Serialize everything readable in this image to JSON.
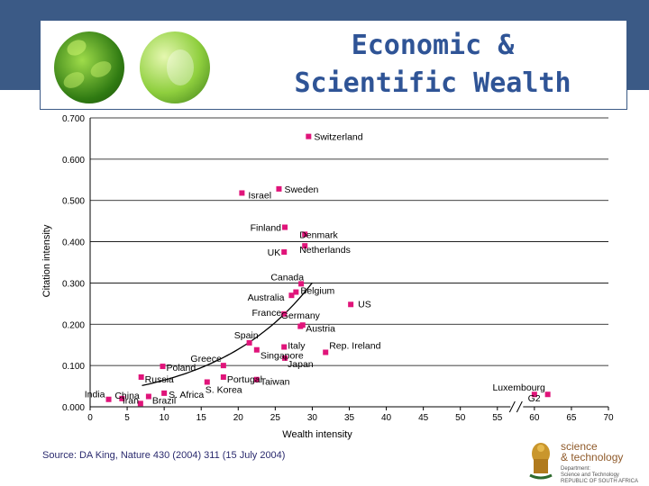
{
  "slide": {
    "title_line1": "Economic &",
    "title_line2": "Scientific Wealth",
    "source": "Source: DA King, Nature 430 (2004) 311 (15 July 2004)",
    "logo": {
      "line1": "science",
      "line2": "& technology",
      "sub1": "Department:",
      "sub2": "Science and Technology",
      "sub3": "REPUBLIC OF SOUTH AFRICA"
    }
  },
  "colors": {
    "header": "#3b5a86",
    "title": "#2f5496",
    "marker": "#e0147a",
    "axis": "#000000"
  },
  "chart_data": {
    "type": "scatter",
    "xlabel": "Wealth intensity",
    "ylabel": "Citation intensity",
    "xlim": [
      0,
      70
    ],
    "ylim": [
      0,
      0.7
    ],
    "x_ticks": [
      "0",
      "5",
      "10",
      "15",
      "20",
      "25",
      "30",
      "35",
      "40",
      "45",
      "50",
      "55",
      "60",
      "65",
      "70"
    ],
    "y_ticks": [
      "0.000",
      "0.100",
      "0.200",
      "0.300",
      "0.400",
      "0.500",
      "0.600",
      "0.700"
    ],
    "grid": "horizontal",
    "axis_break": "between 35 and 60 on x-axis",
    "trend": "curve",
    "points": [
      {
        "label": "Switzerland",
        "x": 29.5,
        "y": 0.655
      },
      {
        "label": "Israel",
        "x": 20.5,
        "y": 0.518
      },
      {
        "label": "Sweden",
        "x": 25.5,
        "y": 0.528
      },
      {
        "label": "Finland",
        "x": 26.3,
        "y": 0.435
      },
      {
        "label": "Denmark",
        "x": 29.0,
        "y": 0.418
      },
      {
        "label": "UK",
        "x": 26.2,
        "y": 0.375
      },
      {
        "label": "Netherlands",
        "x": 29.0,
        "y": 0.39
      },
      {
        "label": "Canada",
        "x": 28.5,
        "y": 0.298
      },
      {
        "label": "Belgium",
        "x": 27.8,
        "y": 0.278
      },
      {
        "label": "Australia",
        "x": 27.2,
        "y": 0.27
      },
      {
        "label": "US",
        "x": 35.2,
        "y": 0.248
      },
      {
        "label": "France",
        "x": 26.2,
        "y": 0.225
      },
      {
        "label": "Germany",
        "x": 28.7,
        "y": 0.198
      },
      {
        "label": "Austria",
        "x": 28.4,
        "y": 0.195
      },
      {
        "label": "Spain",
        "x": 21.5,
        "y": 0.155
      },
      {
        "label": "Italy",
        "x": 26.2,
        "y": 0.145
      },
      {
        "label": "Singapore",
        "x": 22.5,
        "y": 0.138
      },
      {
        "label": "Rep. Ireland",
        "x": 31.8,
        "y": 0.132
      },
      {
        "label": "Japan",
        "x": 26.3,
        "y": 0.118
      },
      {
        "label": "Greece",
        "x": 18.0,
        "y": 0.1
      },
      {
        "label": "Poland",
        "x": 9.8,
        "y": 0.098
      },
      {
        "label": "Russia",
        "x": 6.9,
        "y": 0.072
      },
      {
        "label": "Portugal",
        "x": 18.0,
        "y": 0.072
      },
      {
        "label": "Taiwan",
        "x": 22.5,
        "y": 0.066
      },
      {
        "label": "S. Korea",
        "x": 15.8,
        "y": 0.06
      },
      {
        "label": "China",
        "x": 4.3,
        "y": 0.02
      },
      {
        "label": "India",
        "x": 2.5,
        "y": 0.018
      },
      {
        "label": "Iran",
        "x": 6.8,
        "y": 0.008
      },
      {
        "label": "Brazil",
        "x": 7.9,
        "y": 0.025
      },
      {
        "label": "S. Africa",
        "x": 10.0,
        "y": 0.033
      },
      {
        "label": "Luxembourg",
        "x": 60.0,
        "y": 0.03
      },
      {
        "label": "G2",
        "x": 61.8,
        "y": 0.03
      }
    ]
  }
}
